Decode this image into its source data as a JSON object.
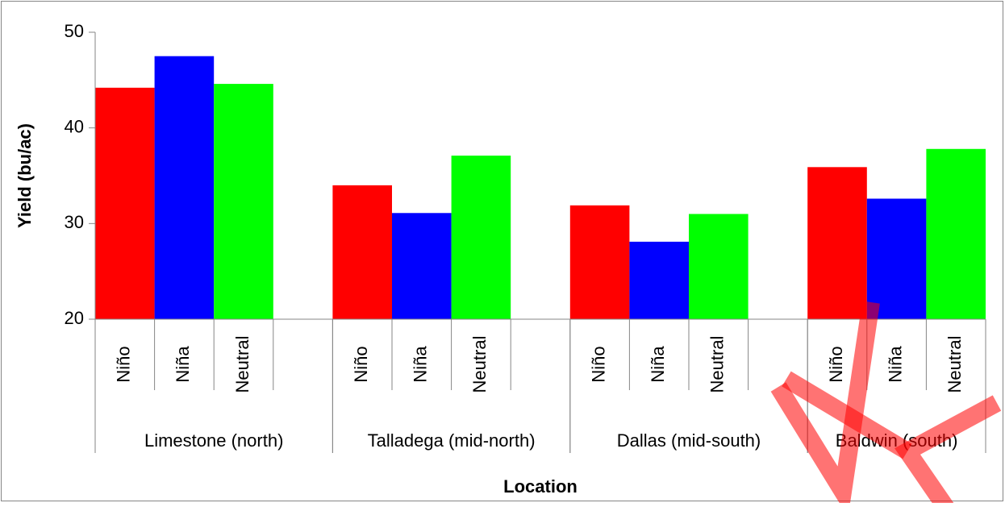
{
  "chart_data": {
    "type": "bar",
    "categories": [
      "Limestone (north)",
      "Talladega (mid-north)",
      "Dallas (mid-south)",
      "Baldwin (south)"
    ],
    "series": [
      {
        "name": "Niño",
        "color": "#ff0000",
        "values": [
          44.2,
          34.0,
          31.9,
          35.9
        ]
      },
      {
        "name": "Niña",
        "color": "#0000ff",
        "values": [
          47.5,
          31.1,
          28.1,
          32.6
        ]
      },
      {
        "name": "Neutral",
        "color": "#00ff00",
        "values": [
          44.6,
          37.1,
          31.0,
          37.8
        ]
      }
    ],
    "ylim": [
      20,
      50
    ],
    "yticks": [
      20,
      30,
      40,
      50
    ],
    "y_label": "Yield (bu/ac)",
    "x_label": "Location",
    "grid": false
  }
}
